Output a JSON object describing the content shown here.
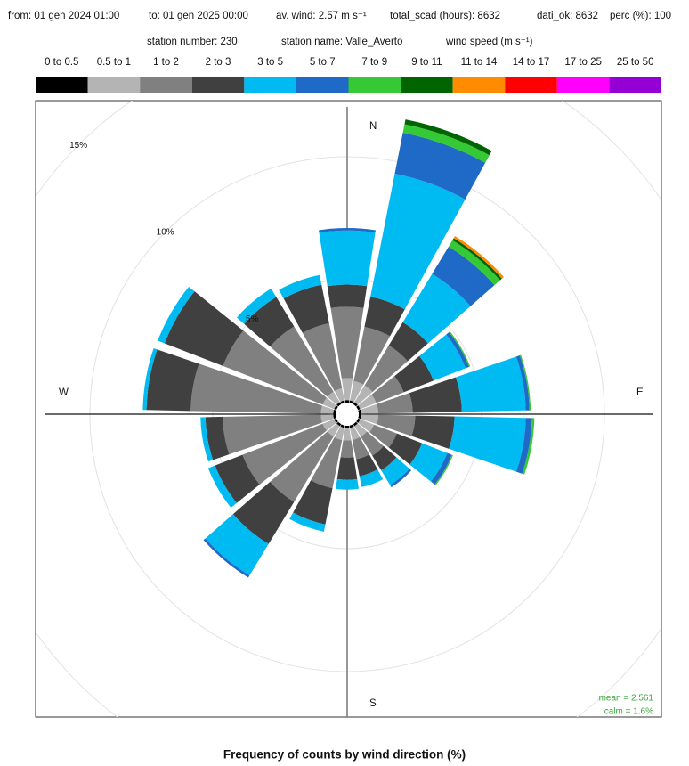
{
  "chart_data": {
    "type": "wind_rose",
    "title": "Frequency of counts by wind direction (%)",
    "header_line1": [
      "from: 01 gen 2024 01:00",
      "to: 01 gen 2025 00:00",
      "av. wind:  2.57 m s⁻¹",
      "total_scad (hours): 8632",
      "dati_ok: 8632",
      "perc (%): 100"
    ],
    "header_line2": [
      "station number:  230",
      "station name: Valle_Averto",
      "wind speed (m s⁻¹)"
    ],
    "compass": [
      "N",
      "E",
      "S",
      "W"
    ],
    "mean_label": "mean = 2.561",
    "calm_label": "calm = 1.6%",
    "directions": [
      0,
      20,
      40,
      60,
      80,
      100,
      120,
      140,
      160,
      180,
      200,
      220,
      240,
      260,
      280,
      300,
      320,
      340
    ],
    "rlim": [
      0,
      15
    ],
    "rticks": [
      {
        "value": 5,
        "label": "5%"
      },
      {
        "value": 10,
        "label": "10%"
      },
      {
        "value": 15,
        "label": "15%"
      }
    ],
    "series": [
      {
        "name": "0 to 0.5",
        "color": "#000000",
        "values": [
          0.1,
          0.1,
          0.1,
          0.1,
          0.1,
          0.1,
          0.1,
          0.1,
          0.1,
          0.1,
          0.1,
          0.1,
          0.1,
          0.1,
          0.1,
          0.1,
          0.1,
          0.1
        ]
      },
      {
        "name": "0.5 to 1",
        "color": "#b4b4b4",
        "values": [
          0.9,
          0.8,
          0.8,
          0.7,
          0.7,
          0.7,
          0.6,
          0.5,
          0.5,
          0.5,
          0.5,
          0.5,
          0.5,
          0.5,
          0.5,
          0.5,
          0.5,
          0.5
        ]
      },
      {
        "name": "1 to 2",
        "color": "#808080",
        "values": [
          2.9,
          2.25,
          1.9,
          1.2,
          1.4,
          1.5,
          1.0,
          0.9,
          0.8,
          0.7,
          2.0,
          3.1,
          3.5,
          4.0,
          5.3,
          4.35,
          3.1,
          2.7
        ]
      },
      {
        "name": "2 to 3",
        "color": "#404040",
        "values": [
          0.9,
          1.25,
          1.1,
          1.3,
          2.0,
          1.6,
          1.1,
          0.7,
          0.7,
          0.9,
          1.5,
          2.0,
          1.2,
          0.7,
          1.8,
          2.55,
          1.4,
          1.6
        ]
      },
      {
        "name": "3 to 5",
        "color": "#00bbf2",
        "values": [
          2.2,
          5.1,
          2.3,
          1.4,
          2.6,
          2.9,
          1.1,
          0.7,
          0.45,
          0.4,
          0.3,
          1.5,
          0.3,
          0.2,
          0.15,
          0.3,
          0.4,
          0.4
        ]
      },
      {
        "name": "5 to 7",
        "color": "#1f6ac6",
        "values": [
          0.1,
          1.7,
          1.3,
          0.15,
          0.15,
          0.25,
          0.2,
          0.1,
          0,
          0,
          0,
          0.1,
          0,
          0,
          0,
          0,
          0,
          0
        ]
      },
      {
        "name": "7 to 9",
        "color": "#36c936",
        "values": [
          0,
          0.35,
          0.3,
          0.05,
          0.05,
          0.1,
          0.05,
          0,
          0,
          0,
          0,
          0,
          0,
          0,
          0,
          0,
          0,
          0
        ]
      },
      {
        "name": "9 to 11",
        "color": "#006400",
        "values": [
          0,
          0.2,
          0.1,
          0,
          0,
          0,
          0,
          0,
          0,
          0,
          0,
          0,
          0,
          0,
          0,
          0,
          0,
          0
        ]
      },
      {
        "name": "11 to 14",
        "color": "#ff8c00",
        "values": [
          0,
          0,
          0.1,
          0,
          0,
          0,
          0,
          0,
          0,
          0,
          0,
          0,
          0,
          0,
          0,
          0,
          0,
          0
        ]
      },
      {
        "name": "14 to 17",
        "color": "#ff0000",
        "values": [
          0,
          0,
          0,
          0,
          0,
          0,
          0,
          0,
          0,
          0,
          0,
          0,
          0,
          0,
          0,
          0,
          0,
          0
        ]
      },
      {
        "name": "17 to 25",
        "color": "#ff00ff",
        "values": [
          0,
          0,
          0,
          0,
          0,
          0,
          0,
          0,
          0,
          0,
          0,
          0,
          0,
          0,
          0,
          0,
          0,
          0
        ]
      },
      {
        "name": "25 to 50",
        "color": "#9400d3",
        "values": [
          0,
          0,
          0,
          0,
          0,
          0,
          0,
          0,
          0,
          0,
          0,
          0,
          0,
          0,
          0,
          0,
          0,
          0
        ]
      }
    ]
  }
}
